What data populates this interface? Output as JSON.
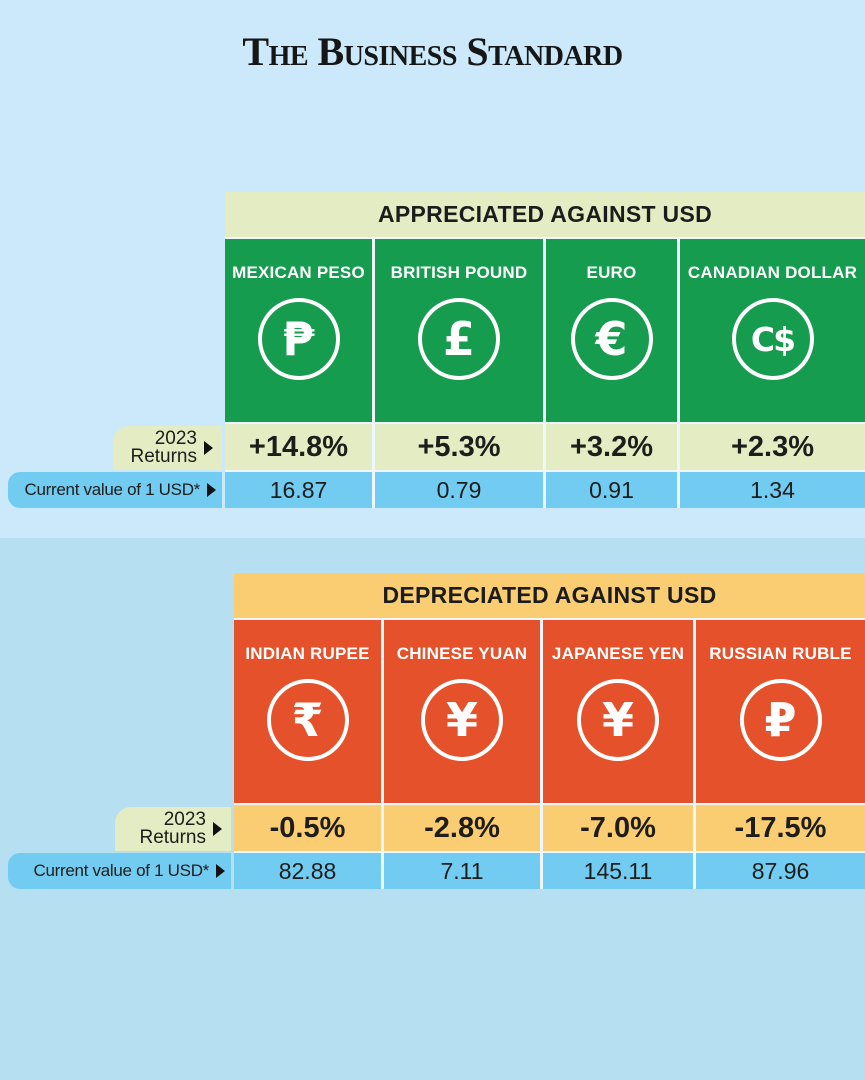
{
  "brand": {
    "title": "The Business Standard"
  },
  "palette": {
    "bg_top": "#cbe9fa",
    "bg_bottom": "#b6dff2",
    "green": "#169c4f",
    "orange": "#e5512a",
    "pale_green": "#e3ecc3",
    "yellow": "#fbcd72",
    "blue_row": "#72cbf1",
    "text_dark": "#1d1d1b",
    "white": "#ffffff"
  },
  "labels": {
    "returns_line1": "2023",
    "returns_line2": "Returns",
    "usd": "Current value of 1 USD*"
  },
  "appreciated": {
    "title": "APPRECIATED AGAINST USD",
    "columns": [
      {
        "name": "MEXICAN PESO",
        "symbol": "₱",
        "returns": "+14.8%",
        "usd_value": "16.87"
      },
      {
        "name": "BRITISH POUND",
        "symbol": "£",
        "returns": "+5.3%",
        "usd_value": "0.79"
      },
      {
        "name": "EURO",
        "symbol": "€",
        "returns": "+3.2%",
        "usd_value": "0.91"
      },
      {
        "name": "CANADIAN DOLLAR",
        "symbol": "C$",
        "returns": "+2.3%",
        "usd_value": "1.34"
      }
    ]
  },
  "depreciated": {
    "title": "DEPRECIATED AGAINST USD",
    "columns": [
      {
        "name": "INDIAN RUPEE",
        "symbol": "₹",
        "returns": "-0.5%",
        "usd_value": "82.88"
      },
      {
        "name": "CHINESE YUAN",
        "symbol": "¥",
        "returns": "-2.8%",
        "usd_value": "7.11"
      },
      {
        "name": "JAPANESE YEN",
        "symbol": "¥",
        "returns": "-7.0%",
        "usd_value": "145.11"
      },
      {
        "name": "RUSSIAN RUBLE",
        "symbol": "₽",
        "returns": "-17.5%",
        "usd_value": "87.96"
      }
    ]
  },
  "chart_data": {
    "type": "table",
    "title": "Currency performance against USD in 2023",
    "series": [
      {
        "name": "Appreciated against USD",
        "categories": [
          "Mexican Peso",
          "British Pound",
          "Euro",
          "Canadian Dollar"
        ],
        "returns_2023_pct": [
          14.8,
          5.3,
          3.2,
          2.3
        ],
        "current_value_of_1_usd": [
          16.87,
          0.79,
          0.91,
          1.34
        ]
      },
      {
        "name": "Depreciated against USD",
        "categories": [
          "Indian Rupee",
          "Chinese Yuan",
          "Japanese Yen",
          "Russian Ruble"
        ],
        "returns_2023_pct": [
          -0.5,
          -2.8,
          -7.0,
          -17.5
        ],
        "current_value_of_1_usd": [
          82.88,
          7.11,
          145.11,
          87.96
        ]
      }
    ]
  }
}
